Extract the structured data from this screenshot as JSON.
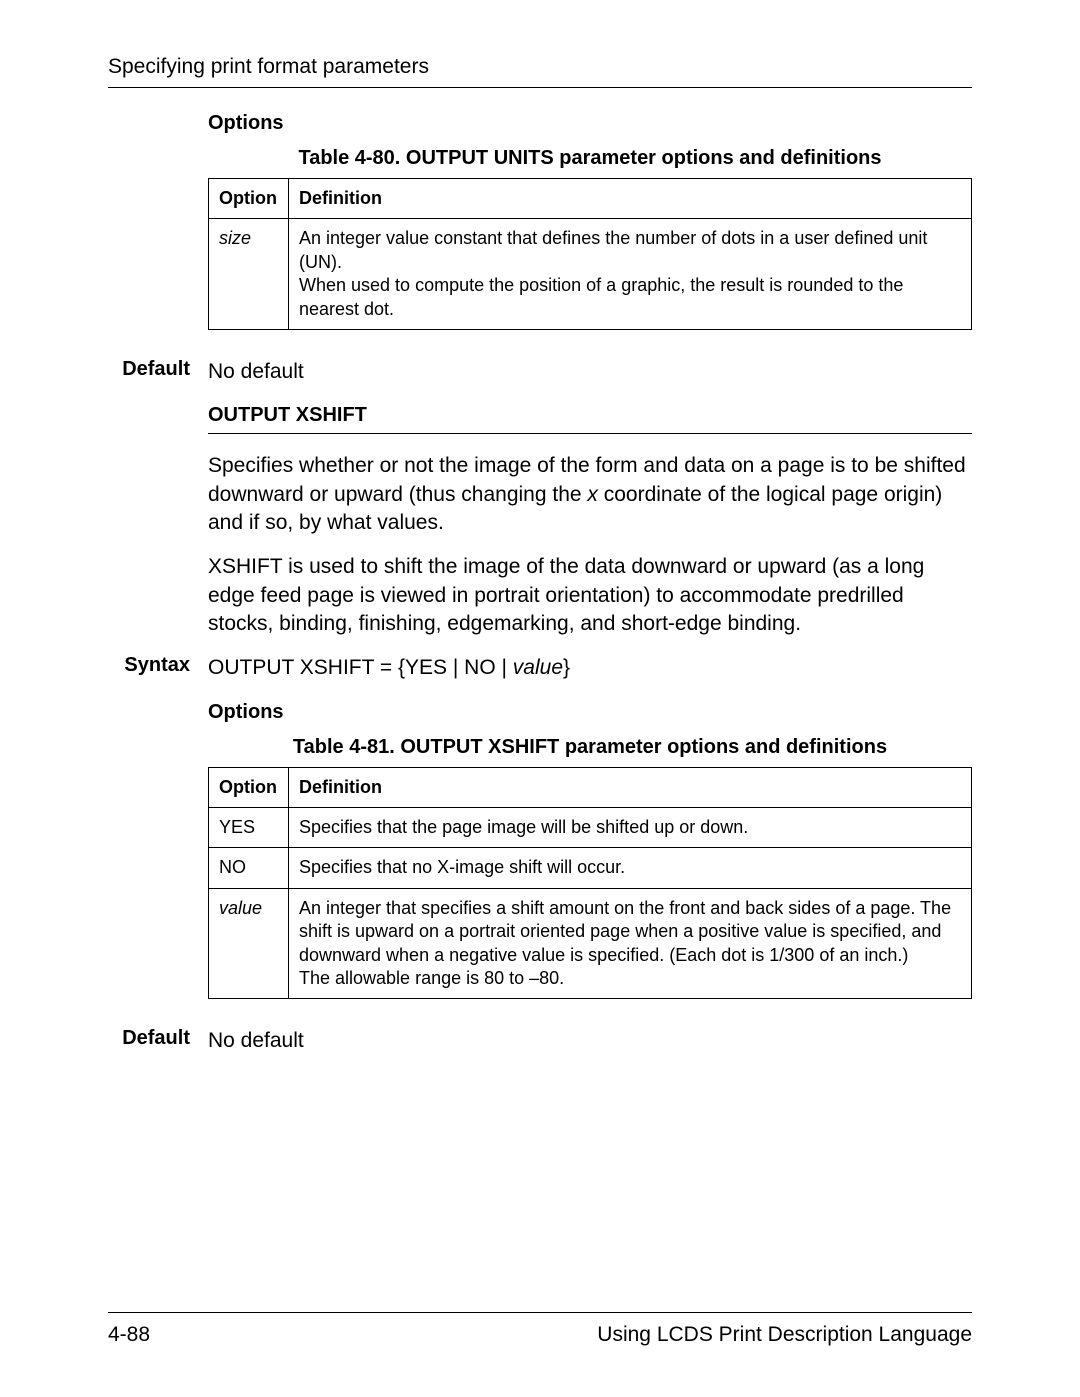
{
  "header": {
    "title": "Specifying print format parameters"
  },
  "section1": {
    "options_heading": "Options",
    "table_caption": "Table 4-80. OUTPUT UNITS parameter options and definitions",
    "col_option": "Option",
    "col_definition": "Definition",
    "row1_option": "size",
    "row1_def_p1": "An integer value constant that defines the number of dots in a user defined unit (UN).",
    "row1_def_p2": "When used to compute the position of a graphic, the result is rounded to the nearest dot.",
    "default_label": "Default",
    "default_value": "No default"
  },
  "section_xshift": {
    "subheading": "OUTPUT XSHIFT",
    "para1_a": "Specifies whether or not the image of the form and data on a page is to be shifted downward or upward (thus changing the ",
    "para1_x": "x",
    "para1_b": " coordinate of the logical page origin) and if so, by what values.",
    "para2": "XSHIFT is used to shift the image of the data downward or upward (as a long edge feed page is viewed in portrait orientation) to accommodate predrilled stocks, binding, finishing, edgemarking, and short-edge binding.",
    "syntax_label": "Syntax",
    "syntax_value_a": "OUTPUT XSHIFT = {YES | NO | ",
    "syntax_value_i": "value",
    "syntax_value_b": "}",
    "options_heading": "Options",
    "table_caption": "Table 4-81. OUTPUT XSHIFT parameter options and definitions",
    "col_option": "Option",
    "col_definition": "Definition",
    "row_yes_opt": "YES",
    "row_yes_def": "Specifies that the page image will be shifted up or down.",
    "row_no_opt": "NO",
    "row_no_def": "Specifies that no X-image shift will occur.",
    "row_val_opt": "value",
    "row_val_def_p1": "An integer that specifies a shift amount on the front and back sides of a page. The shift is upward on a portrait oriented page when a positive value is specified, and downward when a negative value is specified. (Each dot is 1/300 of an inch.)",
    "row_val_def_p2": "The allowable range is 80 to –80.",
    "default_label": "Default",
    "default_value": "No default"
  },
  "footer": {
    "page_num": "4-88",
    "book_title": "Using LCDS Print Description Language"
  }
}
